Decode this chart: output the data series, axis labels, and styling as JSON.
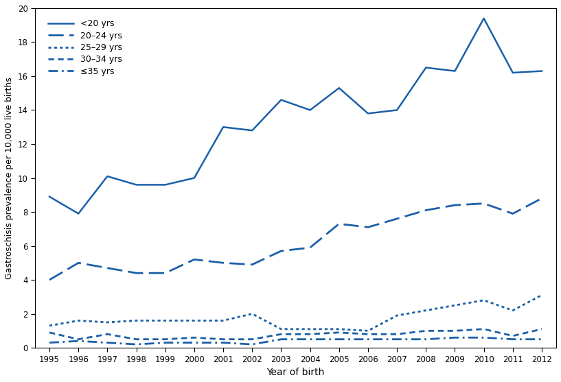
{
  "years": [
    1995,
    1996,
    1997,
    1998,
    1999,
    2000,
    2001,
    2002,
    2003,
    2004,
    2005,
    2006,
    2007,
    2008,
    2009,
    2010,
    2011,
    2012
  ],
  "lt20": [
    8.9,
    7.9,
    10.1,
    9.6,
    9.6,
    10.0,
    13.0,
    12.8,
    14.6,
    14.0,
    15.3,
    13.8,
    14.0,
    16.5,
    16.3,
    19.4,
    16.2,
    16.3
  ],
  "age20_24": [
    4.0,
    5.0,
    4.7,
    4.4,
    4.4,
    5.2,
    5.0,
    4.9,
    5.7,
    5.9,
    7.3,
    7.1,
    7.6,
    8.1,
    8.4,
    8.5,
    7.9,
    8.8
  ],
  "age25_29": [
    1.3,
    1.6,
    1.5,
    1.6,
    1.6,
    1.6,
    1.6,
    2.0,
    1.1,
    1.1,
    1.1,
    1.0,
    1.9,
    2.2,
    2.5,
    2.8,
    2.2,
    3.1
  ],
  "age30_34": [
    0.9,
    0.5,
    0.8,
    0.5,
    0.5,
    0.6,
    0.5,
    0.5,
    0.8,
    0.8,
    0.9,
    0.8,
    0.8,
    1.0,
    1.0,
    1.1,
    0.7,
    1.1
  ],
  "agele35": [
    0.3,
    0.4,
    0.3,
    0.2,
    0.3,
    0.3,
    0.3,
    0.2,
    0.5,
    0.5,
    0.5,
    0.5,
    0.5,
    0.5,
    0.6,
    0.6,
    0.5,
    0.5
  ],
  "color": "#1a5fa8",
  "xlabel": "Year of birth",
  "ylabel": "Gastroschisis prevalence per 10,000 live births",
  "ylim": [
    0,
    20
  ],
  "xlim": [
    1994.5,
    2012.5
  ],
  "yticks": [
    0,
    2,
    4,
    6,
    8,
    10,
    12,
    14,
    16,
    18,
    20
  ],
  "xticks": [
    1995,
    1996,
    1997,
    1998,
    1999,
    2000,
    2001,
    2002,
    2003,
    2004,
    2005,
    2006,
    2007,
    2008,
    2009,
    2010,
    2011,
    2012
  ],
  "legend_labels": [
    "<20 yrs",
    "20–24 yrs",
    "25–29 yrs",
    "30–34 yrs",
    "≤35 yrs"
  ],
  "lw": 1.5
}
